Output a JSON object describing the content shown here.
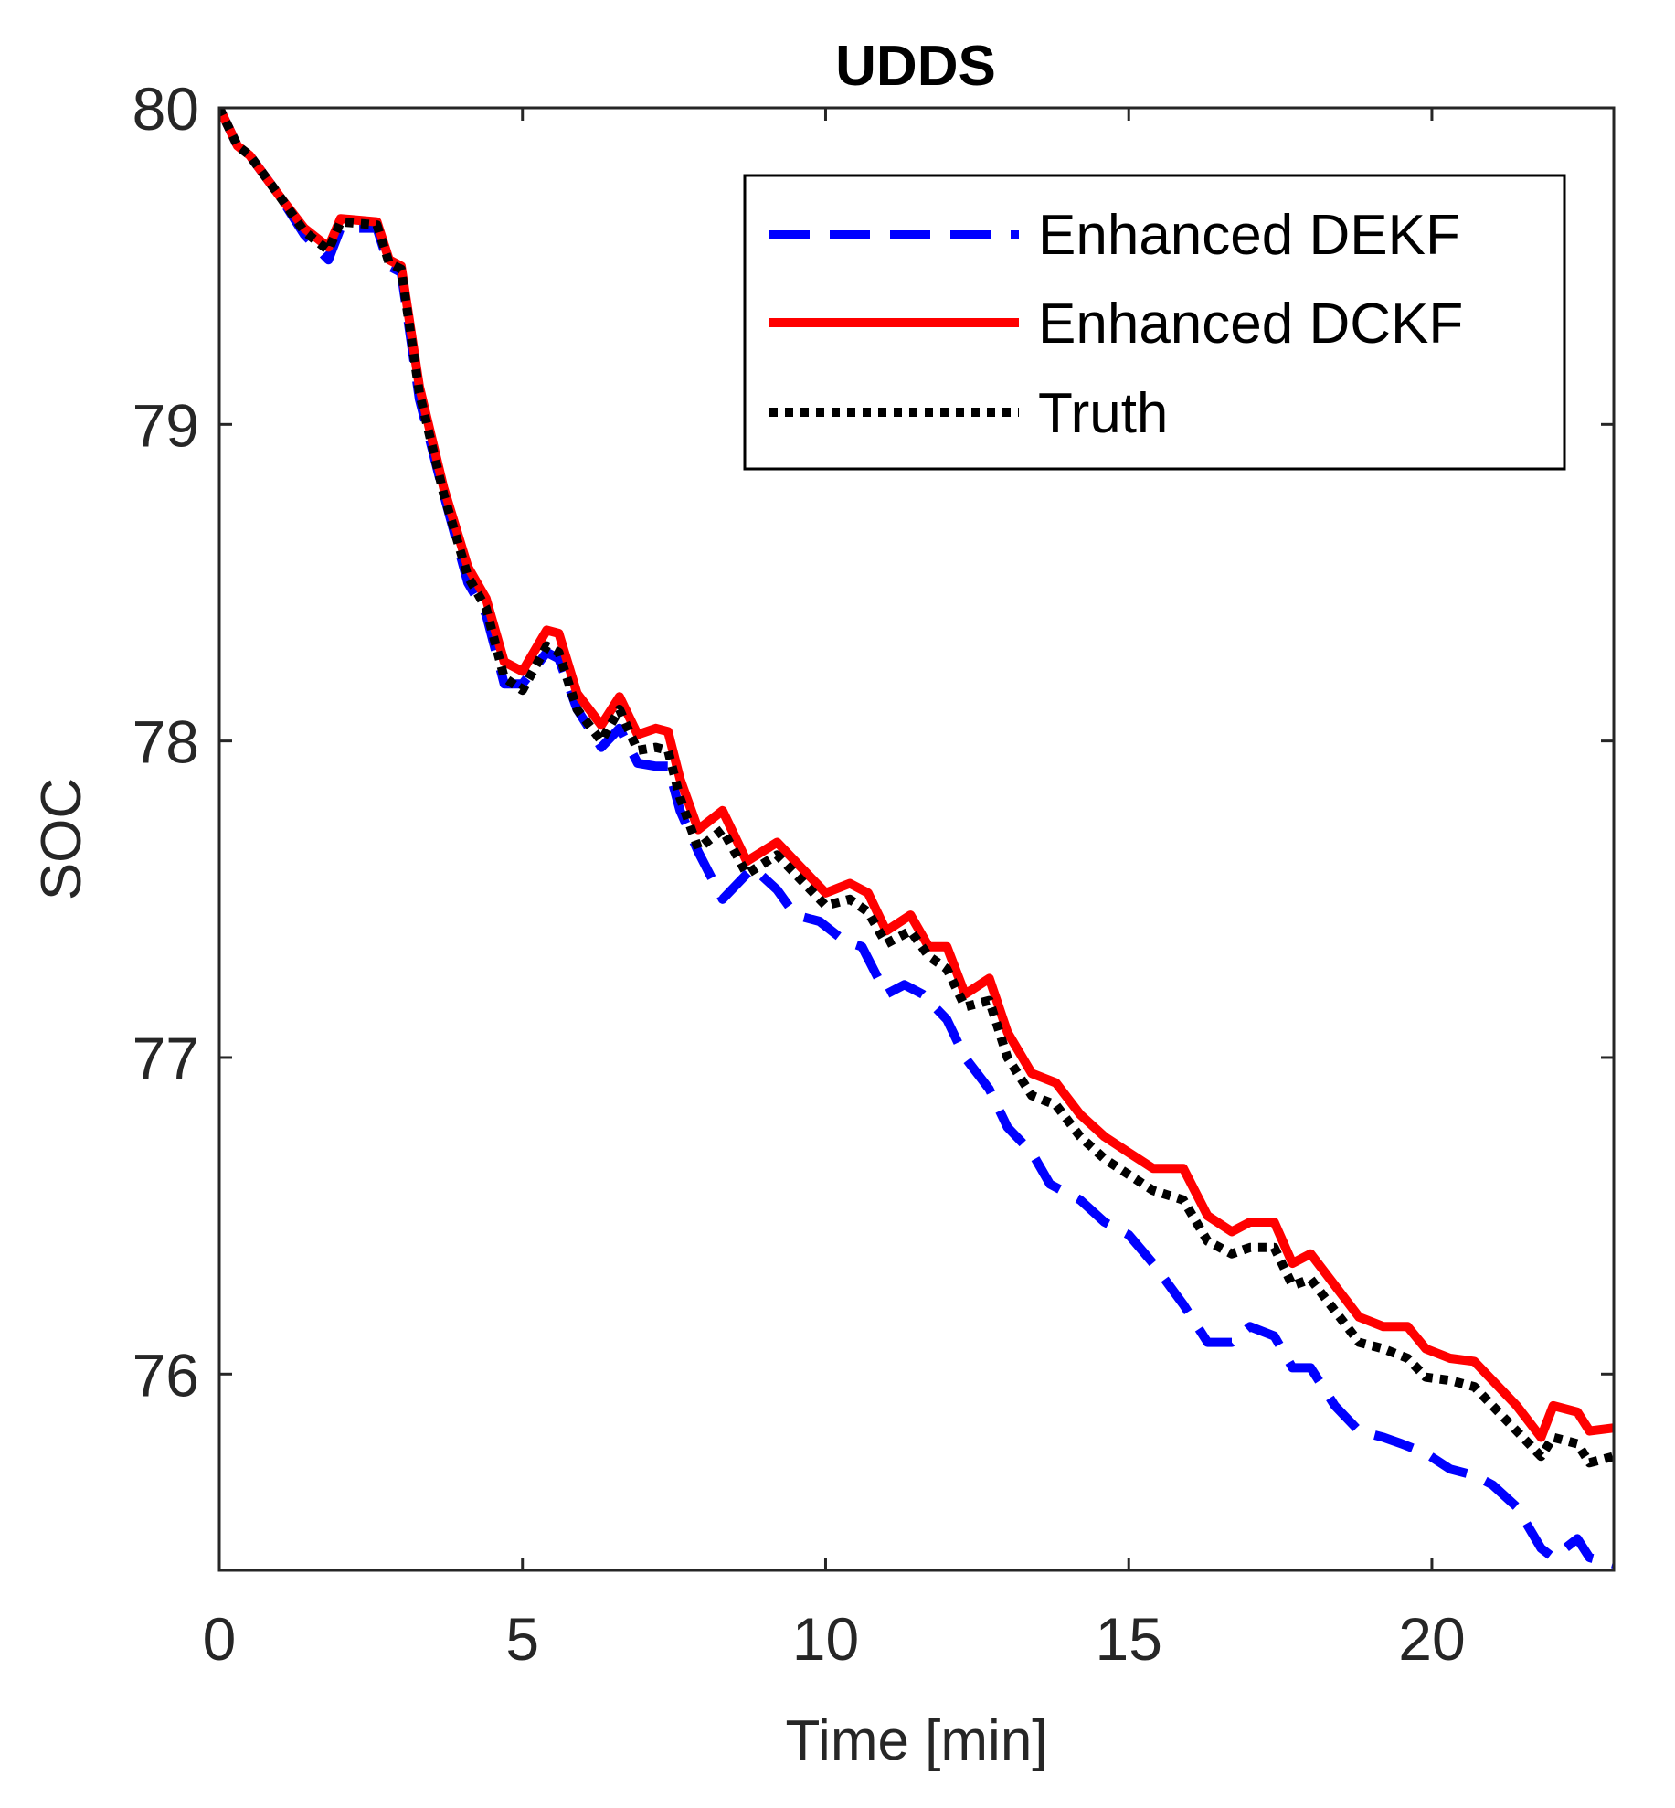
{
  "chart_data": {
    "type": "line",
    "title": "UDDS",
    "xlabel": "Time [min]",
    "ylabel": "SOC",
    "xlim": [
      0,
      23
    ],
    "ylim": [
      75.38,
      80
    ],
    "xticks": [
      0,
      5,
      10,
      15,
      20
    ],
    "yticks": [
      76,
      77,
      78,
      79,
      80
    ],
    "xtick_labels": [
      "0",
      "5",
      "10",
      "15",
      "20"
    ],
    "ytick_labels": [
      "76",
      "77",
      "78",
      "79",
      "80"
    ],
    "grid": false,
    "legend_position": "top-right",
    "series": [
      {
        "name": "Enhanced DEKF",
        "color": "#0000ff",
        "style": "dashed",
        "x": [
          0,
          0.3,
          0.5,
          1.0,
          1.4,
          1.8,
          2.0,
          2.6,
          2.8,
          3.0,
          3.3,
          3.7,
          4.1,
          4.4,
          4.7,
          5.0,
          5.4,
          5.6,
          5.9,
          6.3,
          6.6,
          6.9,
          7.2,
          7.4,
          7.6,
          7.9,
          8.3,
          8.8,
          9.2,
          9.5,
          9.9,
          10.3,
          10.6,
          11.0,
          11.3,
          11.6,
          12.0,
          12.3,
          12.7,
          13.0,
          13.4,
          13.7,
          14.2,
          14.6,
          15.0,
          15.4,
          15.9,
          16.3,
          16.7,
          17.0,
          17.4,
          17.7,
          18.0,
          18.4,
          18.8,
          19.2,
          19.5,
          19.9,
          20.3,
          20.7,
          21.0,
          21.4,
          21.8,
          22.0,
          22.4,
          22.6,
          23.0
        ],
        "y": [
          80.0,
          79.88,
          79.85,
          79.72,
          79.6,
          79.52,
          79.62,
          79.62,
          79.5,
          79.48,
          79.08,
          78.78,
          78.5,
          78.4,
          78.18,
          78.18,
          78.28,
          78.26,
          78.1,
          77.98,
          78.04,
          77.93,
          77.92,
          77.92,
          77.78,
          77.65,
          77.5,
          77.6,
          77.53,
          77.45,
          77.43,
          77.37,
          77.35,
          77.2,
          77.23,
          77.2,
          77.12,
          77.0,
          76.9,
          76.78,
          76.7,
          76.6,
          76.55,
          76.48,
          76.44,
          76.35,
          76.22,
          76.1,
          76.1,
          76.15,
          76.12,
          76.02,
          76.02,
          75.9,
          75.82,
          75.8,
          75.78,
          75.75,
          75.7,
          75.68,
          75.65,
          75.58,
          75.45,
          75.42,
          75.48,
          75.42,
          75.4
        ]
      },
      {
        "name": "Enhanced DCKF",
        "color": "#ff0000",
        "style": "solid",
        "x": [
          0,
          0.3,
          0.5,
          1.0,
          1.4,
          1.8,
          2.0,
          2.6,
          2.8,
          3.0,
          3.3,
          3.7,
          4.1,
          4.4,
          4.7,
          5.0,
          5.4,
          5.6,
          5.9,
          6.3,
          6.6,
          6.9,
          7.2,
          7.4,
          7.6,
          7.9,
          8.3,
          8.7,
          9.2,
          9.6,
          10.0,
          10.4,
          10.7,
          11.0,
          11.4,
          11.7,
          12.0,
          12.3,
          12.7,
          13.0,
          13.4,
          13.8,
          14.2,
          14.6,
          15.0,
          15.4,
          15.9,
          16.3,
          16.7,
          17.0,
          17.4,
          17.7,
          18.0,
          18.4,
          18.8,
          19.2,
          19.6,
          19.9,
          20.3,
          20.7,
          21.0,
          21.4,
          21.8,
          22.0,
          22.4,
          22.6,
          23.0
        ],
        "y": [
          80.0,
          79.88,
          79.85,
          79.72,
          79.62,
          79.56,
          79.65,
          79.64,
          79.52,
          79.5,
          79.12,
          78.8,
          78.55,
          78.45,
          78.25,
          78.22,
          78.35,
          78.34,
          78.15,
          78.05,
          78.14,
          78.02,
          78.04,
          78.03,
          77.88,
          77.72,
          77.78,
          77.62,
          77.68,
          77.6,
          77.52,
          77.55,
          77.52,
          77.4,
          77.45,
          77.35,
          77.35,
          77.2,
          77.25,
          77.08,
          76.95,
          76.92,
          76.82,
          76.75,
          76.7,
          76.65,
          76.65,
          76.5,
          76.45,
          76.48,
          76.48,
          76.35,
          76.38,
          76.28,
          76.18,
          76.15,
          76.15,
          76.08,
          76.05,
          76.04,
          75.98,
          75.9,
          75.8,
          75.9,
          75.88,
          75.82,
          75.83
        ]
      },
      {
        "name": "Truth",
        "color": "#000000",
        "style": "dotted",
        "x": [
          0,
          0.3,
          0.5,
          1.0,
          1.4,
          1.8,
          2.0,
          2.6,
          2.8,
          3.0,
          3.3,
          3.7,
          4.1,
          4.4,
          4.7,
          5.0,
          5.4,
          5.6,
          5.9,
          6.3,
          6.6,
          6.9,
          7.2,
          7.4,
          7.6,
          7.9,
          8.3,
          8.7,
          9.2,
          9.6,
          10.0,
          10.4,
          10.7,
          11.0,
          11.4,
          11.7,
          12.0,
          12.3,
          12.7,
          13.0,
          13.4,
          13.8,
          14.2,
          14.6,
          15.0,
          15.4,
          15.9,
          16.3,
          16.7,
          17.0,
          17.4,
          17.7,
          18.0,
          18.4,
          18.8,
          19.2,
          19.6,
          19.9,
          20.3,
          20.7,
          21.0,
          21.4,
          21.8,
          22.0,
          22.4,
          22.6,
          23.0
        ],
        "y": [
          80.0,
          79.88,
          79.85,
          79.72,
          79.61,
          79.55,
          79.64,
          79.63,
          79.51,
          79.49,
          79.1,
          78.78,
          78.52,
          78.42,
          78.2,
          78.16,
          78.3,
          78.28,
          78.1,
          78.0,
          78.1,
          77.97,
          77.98,
          77.97,
          77.82,
          77.66,
          77.72,
          77.58,
          77.64,
          77.56,
          77.48,
          77.5,
          77.46,
          77.36,
          77.4,
          77.32,
          77.28,
          77.16,
          77.18,
          77.0,
          76.88,
          76.85,
          76.75,
          76.68,
          76.63,
          76.58,
          76.55,
          76.42,
          76.38,
          76.4,
          76.4,
          76.28,
          76.3,
          76.2,
          76.1,
          76.08,
          76.05,
          75.99,
          75.98,
          75.96,
          75.9,
          75.82,
          75.74,
          75.8,
          75.78,
          75.72,
          75.74
        ]
      }
    ]
  }
}
